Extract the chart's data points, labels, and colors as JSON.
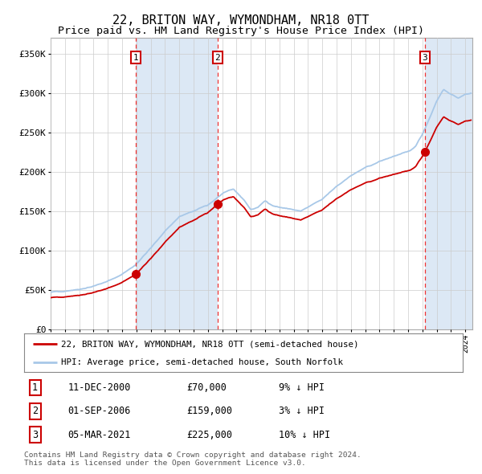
{
  "title": "22, BRITON WAY, WYMONDHAM, NR18 0TT",
  "subtitle": "Price paid vs. HM Land Registry's House Price Index (HPI)",
  "title_fontsize": 11,
  "subtitle_fontsize": 9.5,
  "xlim_start": 1995.0,
  "xlim_end": 2024.5,
  "ylim": [
    0,
    370000
  ],
  "yticks": [
    0,
    50000,
    100000,
    150000,
    200000,
    250000,
    300000,
    350000
  ],
  "ytick_labels": [
    "£0",
    "£50K",
    "£100K",
    "£150K",
    "£200K",
    "£250K",
    "£300K",
    "£350K"
  ],
  "hpi_color": "#a8c8e8",
  "price_color": "#cc0000",
  "sale_dot_color": "#cc0000",
  "vline_color": "#ee3333",
  "highlight_bg": "#dce8f5",
  "grid_color": "#cccccc",
  "sale1_year": 2000.95,
  "sale1_price": 70000,
  "sale1_label": "1",
  "sale1_date": "11-DEC-2000",
  "sale1_text": "£70,000",
  "sale1_hpi": "9% ↓ HPI",
  "sale2_year": 2006.67,
  "sale2_price": 159000,
  "sale2_label": "2",
  "sale2_date": "01-SEP-2006",
  "sale2_text": "£159,000",
  "sale2_hpi": "3% ↓ HPI",
  "sale3_year": 2021.17,
  "sale3_price": 225000,
  "sale3_label": "3",
  "sale3_date": "05-MAR-2021",
  "sale3_text": "£225,000",
  "sale3_hpi": "10% ↓ HPI",
  "legend_line1": "22, BRITON WAY, WYMONDHAM, NR18 0TT (semi-detached house)",
  "legend_line2": "HPI: Average price, semi-detached house, South Norfolk",
  "footnote": "Contains HM Land Registry data © Crown copyright and database right 2024.\nThis data is licensed under the Open Government Licence v3.0.",
  "bg_color": "#ffffff"
}
